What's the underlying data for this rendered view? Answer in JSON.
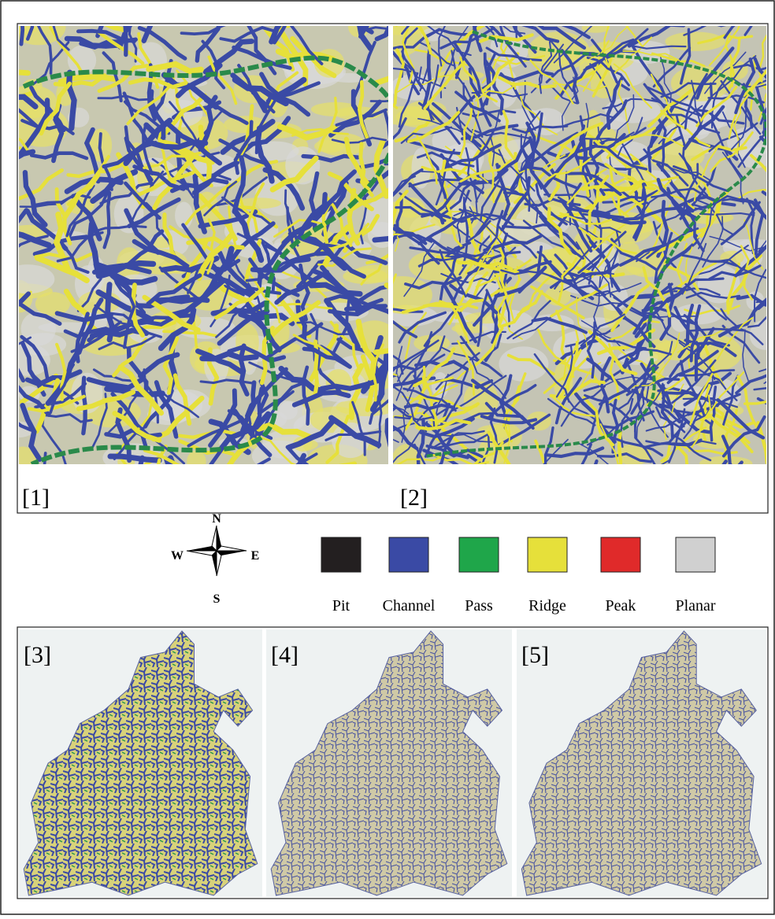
{
  "top_panels": [
    "[1]",
    "[2]"
  ],
  "bottom_panels": [
    "[3]",
    "[4]",
    "[5]"
  ],
  "compass": {
    "north": "N",
    "south": "S",
    "east": "E",
    "west": "W"
  },
  "legend": [
    {
      "label": "Pit",
      "color": "#231f20"
    },
    {
      "label": "Channel",
      "color": "#3a4aa5"
    },
    {
      "label": "Pass",
      "color": "#1fa64a"
    },
    {
      "label": "Ridge",
      "color": "#e6e03a"
    },
    {
      "label": "Peak",
      "color": "#e02a2a"
    },
    {
      "label": "Planar",
      "color": "#d0d0d0"
    }
  ]
}
